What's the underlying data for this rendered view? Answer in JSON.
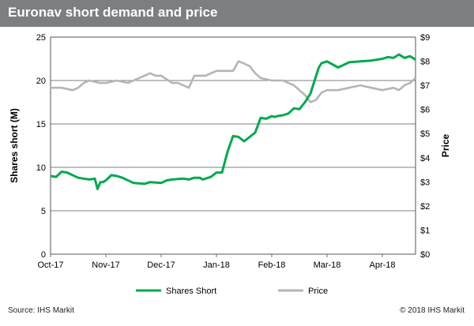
{
  "header": {
    "title": "Euronav short demand and price"
  },
  "footer": {
    "source": "Source: IHS Markit",
    "copyright": "© 2018 IHS Markit"
  },
  "colors": {
    "shares": "#00a94f",
    "price": "#b5b5b5",
    "title_bar": "#7b7f82",
    "grid": "#555555"
  },
  "chart_data": {
    "type": "line",
    "title": "Euronav short demand and price",
    "xlabel": "",
    "ylabel": "Shares short (M)",
    "y2label": "Price",
    "categories": [
      "Oct-17",
      "Nov-17",
      "Dec-17",
      "Jan-18",
      "Feb-18",
      "Mar-18",
      "Apr-18"
    ],
    "ylim": [
      0,
      25
    ],
    "y2lim": [
      0,
      9
    ],
    "yticks": [
      "0",
      "5",
      "10",
      "15",
      "20",
      "25"
    ],
    "y2ticks": [
      "$0",
      "$1",
      "$2",
      "$3",
      "$4",
      "$5",
      "$6",
      "$7",
      "$8",
      "$9"
    ],
    "legend": "bottom",
    "grid": true,
    "series": [
      {
        "name": "Shares Short",
        "axis": "left",
        "x": [
          0,
          0.1,
          0.2,
          0.3,
          0.5,
          0.6,
          0.7,
          0.8,
          0.85,
          0.9,
          0.95,
          1.0,
          1.1,
          1.2,
          1.3,
          1.5,
          1.7,
          1.8,
          2.0,
          2.1,
          2.2,
          2.4,
          2.5,
          2.6,
          2.7,
          2.75,
          2.8,
          2.9,
          3.0,
          3.05,
          3.1,
          3.2,
          3.3,
          3.4,
          3.5,
          3.6,
          3.7,
          3.8,
          3.9,
          4.0,
          4.05,
          4.1,
          4.2,
          4.3,
          4.4,
          4.5,
          4.6,
          4.7,
          4.8,
          4.85,
          4.9,
          5.0,
          5.2,
          5.4,
          5.6,
          5.8,
          6.0,
          6.1,
          6.2,
          6.3,
          6.4,
          6.5,
          6.6
        ],
        "values": [
          9.0,
          8.9,
          9.5,
          9.4,
          8.8,
          8.7,
          8.6,
          8.7,
          7.5,
          8.3,
          8.3,
          8.5,
          9.1,
          9.0,
          8.8,
          8.2,
          8.1,
          8.3,
          8.2,
          8.5,
          8.6,
          8.7,
          8.6,
          8.8,
          8.8,
          8.6,
          8.7,
          8.9,
          9.4,
          9.4,
          9.4,
          11.8,
          13.6,
          13.5,
          13.0,
          13.5,
          14.0,
          15.7,
          15.6,
          15.9,
          15.8,
          15.9,
          16.0,
          16.2,
          16.8,
          16.7,
          17.5,
          18.5,
          20.5,
          21.5,
          22.0,
          22.2,
          21.5,
          22.1,
          22.2,
          22.3,
          22.5,
          22.7,
          22.6,
          23.0,
          22.6,
          22.8,
          22.4
        ]
      },
      {
        "name": "Price",
        "axis": "right",
        "x": [
          0,
          0.2,
          0.4,
          0.5,
          0.6,
          0.7,
          0.9,
          1.0,
          1.2,
          1.4,
          1.6,
          1.8,
          1.9,
          2.0,
          2.2,
          2.3,
          2.4,
          2.5,
          2.6,
          2.8,
          3.0,
          3.1,
          3.3,
          3.4,
          3.5,
          3.6,
          3.7,
          3.8,
          4.0,
          4.1,
          4.2,
          4.3,
          4.4,
          4.5,
          4.6,
          4.7,
          4.8,
          4.9,
          5.0,
          5.2,
          5.4,
          5.6,
          5.8,
          6.0,
          6.2,
          6.3,
          6.4,
          6.5,
          6.6
        ],
        "values": [
          6.9,
          6.9,
          6.8,
          6.9,
          7.1,
          7.2,
          7.1,
          7.1,
          7.2,
          7.1,
          7.3,
          7.5,
          7.4,
          7.4,
          7.1,
          7.1,
          7.0,
          6.9,
          7.4,
          7.4,
          7.6,
          7.6,
          7.6,
          8.0,
          7.9,
          7.8,
          7.5,
          7.3,
          7.2,
          7.2,
          7.2,
          7.1,
          7.0,
          6.8,
          6.6,
          6.3,
          6.4,
          6.7,
          6.8,
          6.8,
          6.9,
          7.0,
          6.9,
          6.8,
          6.9,
          6.8,
          7.0,
          7.1,
          7.3
        ]
      }
    ]
  }
}
